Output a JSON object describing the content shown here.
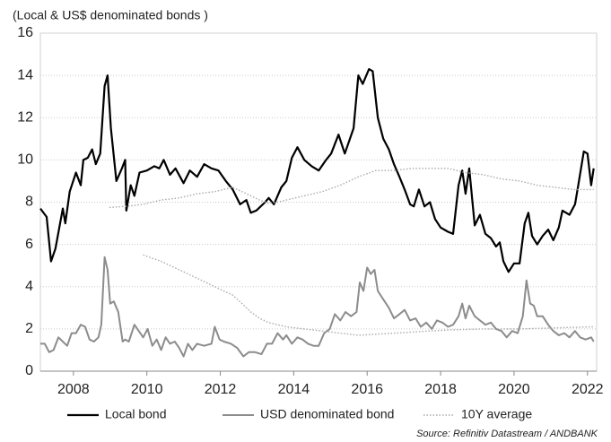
{
  "chart_data": {
    "type": "line",
    "title": "(Local & US$ denominated bonds )",
    "source": "Source: Refinitiv Datastream / ANDBANK",
    "xlim": [
      2007.1,
      2022.25
    ],
    "ylim": [
      0,
      16
    ],
    "xticks": [
      2008,
      2010,
      2012,
      2014,
      2016,
      2018,
      2020,
      2022
    ],
    "yticks": [
      0,
      2,
      4,
      6,
      8,
      10,
      12,
      14,
      16
    ],
    "grid": true,
    "legend": "bottom",
    "series": [
      {
        "name": "Local bond",
        "color": "#000000",
        "line_style": "solid",
        "x": [
          2007.1,
          2007.27,
          2007.39,
          2007.51,
          2007.71,
          2007.78,
          2007.9,
          2008.07,
          2008.2,
          2008.27,
          2008.39,
          2008.51,
          2008.61,
          2008.73,
          2008.85,
          2008.93,
          2009.02,
          2009.17,
          2009.32,
          2009.41,
          2009.44,
          2009.56,
          2009.66,
          2009.8,
          2010.0,
          2010.2,
          2010.34,
          2010.46,
          2010.63,
          2010.78,
          2011.0,
          2011.17,
          2011.37,
          2011.56,
          2011.76,
          2011.95,
          2012.15,
          2012.34,
          2012.54,
          2012.71,
          2012.83,
          2012.98,
          2013.22,
          2013.32,
          2013.46,
          2013.66,
          2013.8,
          2013.95,
          2014.1,
          2014.29,
          2014.49,
          2014.68,
          2014.88,
          2015.02,
          2015.22,
          2015.39,
          2015.63,
          2015.76,
          2015.88,
          2016.05,
          2016.15,
          2016.29,
          2016.44,
          2016.59,
          2016.73,
          2016.88,
          2017.02,
          2017.17,
          2017.27,
          2017.41,
          2017.56,
          2017.71,
          2017.85,
          2018.0,
          2018.2,
          2018.34,
          2018.49,
          2018.59,
          2018.68,
          2018.78,
          2018.93,
          2019.07,
          2019.22,
          2019.37,
          2019.51,
          2019.61,
          2019.71,
          2019.85,
          2020.0,
          2020.15,
          2020.29,
          2020.39,
          2020.49,
          2020.63,
          2020.78,
          2020.93,
          2021.07,
          2021.22,
          2021.32,
          2021.51,
          2021.66,
          2021.76,
          2021.9,
          2022.0,
          2022.1,
          2022.17
        ],
        "values": [
          7.7,
          7.3,
          5.2,
          5.8,
          7.7,
          7.0,
          8.5,
          9.4,
          8.8,
          10.0,
          10.1,
          10.5,
          9.8,
          10.3,
          13.5,
          14.0,
          11.5,
          9.0,
          9.6,
          10.0,
          7.6,
          8.8,
          8.3,
          9.4,
          9.5,
          9.7,
          9.6,
          10.0,
          9.3,
          9.6,
          8.9,
          9.5,
          9.2,
          9.8,
          9.6,
          9.5,
          9.0,
          8.6,
          7.9,
          8.1,
          7.5,
          7.6,
          8.0,
          8.2,
          7.9,
          8.7,
          9.0,
          10.1,
          10.6,
          10.0,
          9.7,
          9.5,
          10.0,
          10.3,
          11.2,
          10.3,
          11.5,
          14.0,
          13.6,
          14.3,
          14.2,
          12.0,
          11.0,
          10.5,
          9.8,
          9.2,
          8.6,
          7.9,
          7.8,
          8.6,
          7.8,
          8.0,
          7.2,
          6.8,
          6.6,
          6.5,
          8.8,
          9.5,
          8.4,
          9.6,
          6.9,
          7.4,
          6.5,
          6.3,
          5.9,
          6.1,
          5.2,
          4.7,
          5.1,
          5.1,
          7.0,
          7.5,
          6.4,
          6.0,
          6.4,
          6.7,
          6.2,
          6.8,
          7.6,
          7.4,
          7.9,
          8.9,
          10.4,
          10.3,
          8.8,
          9.6
        ]
      },
      {
        "name": "USD denominated bond",
        "color": "#8c8c8c",
        "line_style": "solid",
        "x": [
          2007.1,
          2007.22,
          2007.34,
          2007.46,
          2007.59,
          2007.71,
          2007.83,
          2007.95,
          2008.07,
          2008.2,
          2008.32,
          2008.44,
          2008.56,
          2008.68,
          2008.76,
          2008.85,
          2008.93,
          2009.0,
          2009.1,
          2009.22,
          2009.34,
          2009.41,
          2009.51,
          2009.66,
          2009.78,
          2009.9,
          2010.02,
          2010.15,
          2010.27,
          2010.39,
          2010.51,
          2010.63,
          2010.76,
          2010.88,
          2011.0,
          2011.12,
          2011.24,
          2011.37,
          2011.56,
          2011.76,
          2011.85,
          2011.98,
          2012.1,
          2012.29,
          2012.46,
          2012.63,
          2012.78,
          2012.95,
          2013.12,
          2013.27,
          2013.41,
          2013.56,
          2013.71,
          2013.8,
          2013.95,
          2014.1,
          2014.24,
          2014.39,
          2014.54,
          2014.68,
          2014.83,
          2014.98,
          2015.12,
          2015.27,
          2015.41,
          2015.56,
          2015.71,
          2015.8,
          2015.9,
          2016.0,
          2016.1,
          2016.2,
          2016.29,
          2016.44,
          2016.59,
          2016.73,
          2016.88,
          2017.02,
          2017.17,
          2017.32,
          2017.46,
          2017.61,
          2017.76,
          2017.9,
          2018.05,
          2018.2,
          2018.34,
          2018.49,
          2018.59,
          2018.68,
          2018.78,
          2018.93,
          2019.07,
          2019.22,
          2019.37,
          2019.51,
          2019.66,
          2019.8,
          2019.95,
          2020.1,
          2020.24,
          2020.34,
          2020.44,
          2020.54,
          2020.63,
          2020.78,
          2020.93,
          2021.07,
          2021.22,
          2021.37,
          2021.51,
          2021.66,
          2021.8,
          2021.95,
          2022.1,
          2022.17
        ],
        "values": [
          1.3,
          1.3,
          0.9,
          1.0,
          1.6,
          1.4,
          1.2,
          1.8,
          1.8,
          2.2,
          2.1,
          1.5,
          1.4,
          1.6,
          2.2,
          5.4,
          4.8,
          3.2,
          3.3,
          2.8,
          1.4,
          1.5,
          1.4,
          2.2,
          1.9,
          1.6,
          2.0,
          1.2,
          1.5,
          1.0,
          1.6,
          1.3,
          1.4,
          1.1,
          0.7,
          1.3,
          1.0,
          1.3,
          1.2,
          1.3,
          2.1,
          1.5,
          1.4,
          1.3,
          1.1,
          0.7,
          0.9,
          0.9,
          0.8,
          1.3,
          1.3,
          1.8,
          1.5,
          1.7,
          1.3,
          1.6,
          1.5,
          1.3,
          1.2,
          1.2,
          1.8,
          2.0,
          2.7,
          2.4,
          2.8,
          2.6,
          2.8,
          4.2,
          3.8,
          4.9,
          4.6,
          4.8,
          3.8,
          3.4,
          3.0,
          2.5,
          2.7,
          2.9,
          2.4,
          2.5,
          2.1,
          2.3,
          2.0,
          2.4,
          2.3,
          2.1,
          2.2,
          2.6,
          3.2,
          2.5,
          3.1,
          2.6,
          2.4,
          2.2,
          2.3,
          2.0,
          1.9,
          1.6,
          1.9,
          1.8,
          2.6,
          4.3,
          3.2,
          3.1,
          2.6,
          2.6,
          2.2,
          1.9,
          1.7,
          1.8,
          1.6,
          1.9,
          1.6,
          1.5,
          1.6,
          1.4
        ]
      },
      {
        "name": "10Y average",
        "color": "#aaaaaa",
        "line_style": "dotted",
        "x": [
          2008.98,
          2009.41,
          2009.9,
          2010.39,
          2010.88,
          2011.37,
          2011.85,
          2012.34,
          2012.59,
          2012.83,
          2013.07,
          2013.32,
          2013.56,
          2013.8,
          2014.29,
          2014.78,
          2015.27,
          2015.76,
          2016.24,
          2016.73,
          2017.22,
          2017.71,
          2018.2,
          2018.68,
          2019.17,
          2019.66,
          2020.15,
          2020.63,
          2021.12,
          2021.61,
          2022.17,
          null,
          2009.9,
          2010.39,
          2010.88,
          2011.37,
          2011.85,
          2012.34,
          2012.59,
          2012.83,
          2013.07,
          2013.32,
          2013.8,
          2014.29,
          2014.78,
          2015.27,
          2015.76,
          2016.24,
          2016.73,
          2017.22,
          2017.71,
          2018.2,
          2019.17,
          2020.15,
          2021.12,
          2022.17
        ],
        "values": [
          7.75,
          7.8,
          7.9,
          8.1,
          8.2,
          8.4,
          8.5,
          8.7,
          8.5,
          8.3,
          8.1,
          7.95,
          8.0,
          8.1,
          8.3,
          8.5,
          8.8,
          9.2,
          9.5,
          9.5,
          9.6,
          9.6,
          9.6,
          9.4,
          9.3,
          9.1,
          9.0,
          8.8,
          8.7,
          8.6,
          8.6,
          null,
          5.5,
          5.2,
          4.8,
          4.4,
          4.0,
          3.6,
          3.2,
          2.8,
          2.5,
          2.3,
          2.1,
          2.0,
          1.9,
          1.8,
          1.7,
          1.75,
          1.8,
          1.85,
          1.9,
          1.95,
          2.0,
          2.0,
          2.05,
          2.1
        ]
      }
    ]
  }
}
